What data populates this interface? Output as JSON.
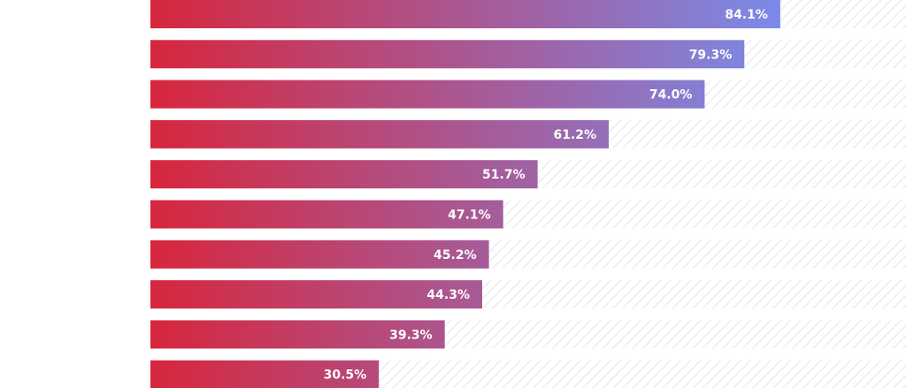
{
  "chart_data": {
    "type": "bar",
    "orientation": "horizontal",
    "title": "",
    "xlabel": "",
    "ylabel": "",
    "xlim": [
      0,
      100
    ],
    "categories": [
      "",
      "",
      "",
      "",
      "",
      "",
      "",
      "",
      "",
      ""
    ],
    "values": [
      84.1,
      79.3,
      74.0,
      61.2,
      51.7,
      47.1,
      45.2,
      44.3,
      39.3,
      30.5
    ],
    "labels": [
      "84.1%",
      "79.3%",
      "74.0%",
      "61.2%",
      "51.7%",
      "47.1%",
      "45.2%",
      "44.3%",
      "39.3%",
      "30.5%"
    ],
    "gradient_start_color": "#d7263d",
    "gradient_end_color": "#7b8ae8",
    "track_color": "#d9d9d9",
    "background_color": "#ffffff"
  }
}
